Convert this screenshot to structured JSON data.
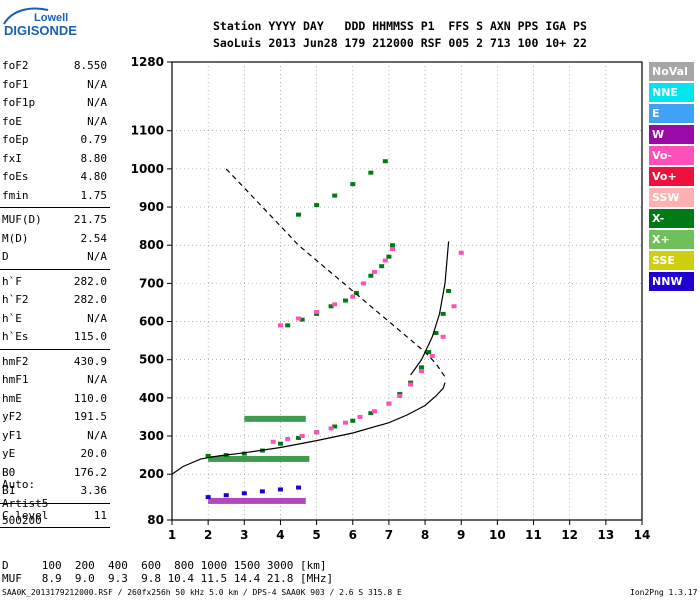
{
  "logo": {
    "company": "Lowell",
    "product": "DIGISONDE"
  },
  "header": {
    "line1": "Station YYYY DAY   DDD HHMMSS P1  FFS S AXN PPS IGA PS",
    "line2": "SaoLuis 2013 Jun28 179 212000 RSF 005 2 713 100 10+ 22"
  },
  "params_groups": [
    [
      {
        "name": "foF2",
        "value": "8.550"
      },
      {
        "name": "foF1",
        "value": "N/A"
      },
      {
        "name": "foF1p",
        "value": "N/A"
      },
      {
        "name": "foE",
        "value": "N/A"
      },
      {
        "name": "foEp",
        "value": "0.79"
      },
      {
        "name": "fxI",
        "value": "8.80"
      },
      {
        "name": "foEs",
        "value": "4.80"
      },
      {
        "name": "fmin",
        "value": "1.75"
      }
    ],
    [
      {
        "name": "MUF(D)",
        "value": "21.75"
      },
      {
        "name": "M(D)",
        "value": "2.54"
      },
      {
        "name": "D",
        "value": "N/A"
      }
    ],
    [
      {
        "name": "h`F",
        "value": "282.0"
      },
      {
        "name": "h`F2",
        "value": "282.0"
      },
      {
        "name": "h`E",
        "value": "N/A"
      },
      {
        "name": "h`Es",
        "value": "115.0"
      }
    ],
    [
      {
        "name": "hmF2",
        "value": "430.9"
      },
      {
        "name": "hmF1",
        "value": "N/A"
      },
      {
        "name": "hmE",
        "value": "110.0"
      },
      {
        "name": "yF2",
        "value": "191.5"
      },
      {
        "name": "yF1",
        "value": "N/A"
      },
      {
        "name": "yE",
        "value": "20.0"
      },
      {
        "name": "B0",
        "value": "176.2"
      },
      {
        "name": "B1",
        "value": "3.36"
      }
    ],
    [
      {
        "name": "C-level",
        "value": "11"
      }
    ]
  ],
  "auto": {
    "line1": "Auto:",
    "line2": "Artist5",
    "line3": "500200"
  },
  "legend": [
    {
      "label": "NoVal",
      "color": "#a6a6a6"
    },
    {
      "label": "NNE",
      "color": "#00e5ee"
    },
    {
      "label": "E",
      "color": "#3fa2f5"
    },
    {
      "label": "W",
      "color": "#9a0aa8"
    },
    {
      "label": "Vo-",
      "color": "#ff4fb8"
    },
    {
      "label": "Vo+",
      "color": "#f0103c"
    },
    {
      "label": "SSW",
      "color": "#ffb0b0"
    },
    {
      "label": "X-",
      "color": "#007a14"
    },
    {
      "label": "X+",
      "color": "#6fbf5a"
    },
    {
      "label": "SSE",
      "color": "#cfcf10"
    },
    {
      "label": "NNW",
      "color": "#2000d0"
    }
  ],
  "muf_table": {
    "d_line": "D     100  200  400  600  800 1000 1500 3000 [km]",
    "muf_line": "MUF   8.9  9.0  9.3  9.8 10.4 11.5 14.4 21.8 [MHz]"
  },
  "footer": {
    "left": "SAA0K_2013179212000.RSF / 260fx256h 50 kHz 5.0 km / DPS-4 SAA0K 903 / 2.6 S 315.8 E",
    "right": "Ion2Png 1.3.17"
  },
  "chart_data": {
    "type": "scatter",
    "x_ticks": [
      "1",
      "2",
      "3",
      "4",
      "5",
      "6",
      "7",
      "8",
      "9",
      "10",
      "11",
      "12",
      "13",
      "14"
    ],
    "y_ticks": [
      "80",
      "200",
      "300",
      "400",
      "500",
      "600",
      "700",
      "800",
      "900",
      "1000",
      "1100",
      "1280"
    ],
    "xlim": [
      1,
      14
    ],
    "ylim": [
      80,
      1280
    ],
    "grid": "dotted",
    "series": [
      {
        "name": "X-",
        "color": "#007a14",
        "traces": [
          {
            "x": [
              2.0,
              2.5,
              3.0,
              3.5,
              4.0,
              4.5,
              5.0,
              5.5,
              6.0,
              6.5,
              7.0,
              7.3,
              7.6,
              7.9,
              8.1,
              8.3,
              8.5,
              8.65
            ],
            "y": [
              248,
              250,
              254,
              262,
              280,
              295,
              310,
              325,
              340,
              360,
              385,
              410,
              440,
              480,
              520,
              570,
              620,
              680
            ]
          },
          {
            "x": [
              4.2,
              4.6,
              5.0,
              5.4,
              5.8,
              6.1
            ],
            "y": [
              590,
              605,
              620,
              640,
              655,
              675
            ]
          },
          {
            "x": [
              4.5,
              5.0,
              5.5,
              6.0,
              6.5,
              6.9
            ],
            "y": [
              880,
              905,
              930,
              960,
              990,
              1020
            ]
          },
          {
            "x": [
              6.5,
              6.8,
              7.0,
              7.1
            ],
            "y": [
              720,
              745,
              770,
              800
            ]
          }
        ]
      },
      {
        "name": "Vo-",
        "color": "#ff4fb8",
        "traces": [
          {
            "x": [
              3.8,
              4.2,
              4.6,
              5.0,
              5.4,
              5.8,
              6.2,
              6.6,
              7.0,
              7.3,
              7.6,
              7.9,
              8.2,
              8.5,
              8.8,
              9.0
            ],
            "y": [
              285,
              292,
              300,
              310,
              320,
              335,
              350,
              365,
              385,
              405,
              435,
              470,
              510,
              560,
              640,
              780
            ]
          },
          {
            "x": [
              4.0,
              4.5,
              5.0,
              5.5,
              6.0
            ],
            "y": [
              590,
              608,
              625,
              645,
              665
            ]
          },
          {
            "x": [
              6.3,
              6.6,
              6.9,
              7.1
            ],
            "y": [
              700,
              730,
              760,
              790
            ]
          }
        ]
      },
      {
        "name": "NNW",
        "color": "#2000d0",
        "traces": [
          {
            "x": [
              2.0,
              2.5,
              3.0,
              3.5,
              4.0,
              4.5
            ],
            "y": [
              140,
              145,
              150,
              155,
              160,
              165
            ]
          }
        ]
      }
    ],
    "curves": [
      {
        "style": "solid",
        "x": [
          1.0,
          1.3,
          1.8,
          2.3,
          3.0,
          4.0,
          5.0,
          6.0,
          7.0,
          7.5,
          8.0,
          8.3,
          8.5,
          8.55
        ],
        "y": [
          200,
          220,
          240,
          248,
          256,
          270,
          288,
          308,
          335,
          355,
          380,
          405,
          425,
          440
        ]
      },
      {
        "style": "solid",
        "x": [
          7.6,
          7.9,
          8.2,
          8.4,
          8.55,
          8.65
        ],
        "y": [
          460,
          500,
          560,
          620,
          700,
          810
        ]
      },
      {
        "style": "dashed",
        "x": [
          2.5,
          3.0,
          3.5,
          4.0,
          4.5,
          5.0,
          5.5,
          6.0,
          6.5,
          7.0,
          7.5,
          8.0,
          8.3,
          8.55
        ],
        "y": [
          1000,
          950,
          900,
          850,
          800,
          760,
          720,
          680,
          640,
          600,
          560,
          520,
          490,
          455
        ]
      }
    ],
    "bands": [
      {
        "color": "#007a14",
        "x": [
          2.0,
          4.8
        ],
        "y": 240
      },
      {
        "color": "#9a0aa8",
        "x": [
          2.0,
          4.7
        ],
        "y": 130
      },
      {
        "color": "#007a14",
        "x": [
          3.0,
          4.7
        ],
        "y": 345
      }
    ]
  }
}
